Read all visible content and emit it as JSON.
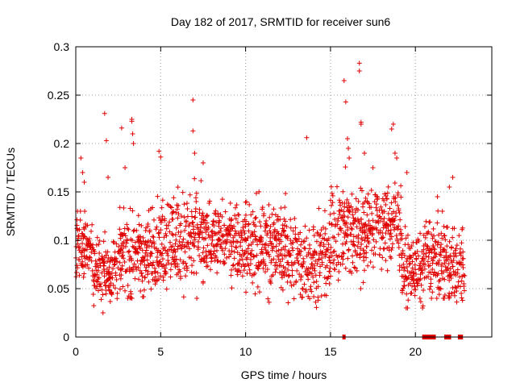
{
  "chart_data": {
    "type": "scatter",
    "title": "Day 182 of 2017, SRMTID for receiver sun6",
    "xlabel": "GPS time / hours",
    "ylabel": "SRMTID / TECUs",
    "xlim": [
      0,
      24.5
    ],
    "ylim": [
      0,
      0.3
    ],
    "x_ticks": [
      0,
      5,
      10,
      15,
      20
    ],
    "y_ticks": [
      0,
      0.05,
      0.1,
      0.15,
      0.2,
      0.25,
      0.3
    ],
    "y_tick_labels": [
      "0",
      "0.05",
      "0.1",
      "0.15",
      "0.2",
      "0.25",
      "0.3"
    ],
    "grid": true,
    "marker": "plus",
    "color": "#e00000",
    "sample_interval_hours": 0.02,
    "series": [
      {
        "name": "sun6",
        "segments": [
          {
            "t_start": 0.0,
            "t_end": 1.0,
            "min": 0.04,
            "max": 0.13,
            "center": 0.095
          },
          {
            "t_start": 1.0,
            "t_end": 2.5,
            "min": 0.025,
            "max": 0.12,
            "center": 0.07
          },
          {
            "t_start": 2.5,
            "t_end": 4.5,
            "min": 0.04,
            "max": 0.15,
            "center": 0.085
          },
          {
            "t_start": 4.5,
            "t_end": 7.5,
            "min": 0.04,
            "max": 0.17,
            "center": 0.1
          },
          {
            "t_start": 7.5,
            "t_end": 10.0,
            "min": 0.05,
            "max": 0.15,
            "center": 0.1
          },
          {
            "t_start": 10.0,
            "t_end": 12.5,
            "min": 0.035,
            "max": 0.16,
            "center": 0.095
          },
          {
            "t_start": 12.5,
            "t_end": 15.0,
            "min": 0.03,
            "max": 0.15,
            "center": 0.08
          },
          {
            "t_start": 15.0,
            "t_end": 17.0,
            "min": 0.05,
            "max": 0.18,
            "center": 0.11
          },
          {
            "t_start": 17.0,
            "t_end": 19.2,
            "min": 0.06,
            "max": 0.17,
            "center": 0.115
          },
          {
            "t_start": 19.2,
            "t_end": 20.5,
            "min": 0.03,
            "max": 0.12,
            "center": 0.07
          },
          {
            "t_start": 20.5,
            "t_end": 22.0,
            "min": 0.04,
            "max": 0.15,
            "center": 0.08
          },
          {
            "t_start": 22.0,
            "t_end": 22.9,
            "min": 0.03,
            "max": 0.14,
            "center": 0.07
          }
        ],
        "outliers": [
          {
            "x": 0.3,
            "y": 0.185
          },
          {
            "x": 0.4,
            "y": 0.17
          },
          {
            "x": 0.5,
            "y": 0.16
          },
          {
            "x": 1.7,
            "y": 0.231
          },
          {
            "x": 1.8,
            "y": 0.203
          },
          {
            "x": 1.9,
            "y": 0.165
          },
          {
            "x": 2.7,
            "y": 0.216
          },
          {
            "x": 3.3,
            "y": 0.225
          },
          {
            "x": 3.3,
            "y": 0.223
          },
          {
            "x": 3.35,
            "y": 0.21
          },
          {
            "x": 3.4,
            "y": 0.2
          },
          {
            "x": 2.9,
            "y": 0.175
          },
          {
            "x": 4.9,
            "y": 0.192
          },
          {
            "x": 5.0,
            "y": 0.186
          },
          {
            "x": 6.9,
            "y": 0.245
          },
          {
            "x": 6.9,
            "y": 0.213
          },
          {
            "x": 7.0,
            "y": 0.19
          },
          {
            "x": 7.5,
            "y": 0.18
          },
          {
            "x": 13.6,
            "y": 0.206
          },
          {
            "x": 15.8,
            "y": 0.265
          },
          {
            "x": 15.9,
            "y": 0.243
          },
          {
            "x": 16.0,
            "y": 0.205
          },
          {
            "x": 16.05,
            "y": 0.195
          },
          {
            "x": 16.1,
            "y": 0.185
          },
          {
            "x": 16.7,
            "y": 0.283
          },
          {
            "x": 16.7,
            "y": 0.275
          },
          {
            "x": 16.8,
            "y": 0.222
          },
          {
            "x": 16.8,
            "y": 0.22
          },
          {
            "x": 17.0,
            "y": 0.19
          },
          {
            "x": 17.5,
            "y": 0.175
          },
          {
            "x": 18.6,
            "y": 0.215
          },
          {
            "x": 18.7,
            "y": 0.22
          },
          {
            "x": 18.8,
            "y": 0.19
          },
          {
            "x": 18.9,
            "y": 0.185
          },
          {
            "x": 19.5,
            "y": 0.17
          },
          {
            "x": 22.2,
            "y": 0.165
          },
          {
            "x": 22.0,
            "y": 0.155
          },
          {
            "x": 21.3,
            "y": 0.145
          }
        ]
      }
    ],
    "zero_markers": [
      {
        "x_start": 15.7,
        "x_end": 15.85,
        "y": 0
      },
      {
        "x_start": 20.4,
        "x_end": 21.2,
        "y": 0
      },
      {
        "x_start": 21.7,
        "x_end": 22.1,
        "y": 0
      },
      {
        "x_start": 22.5,
        "x_end": 22.8,
        "y": 0
      }
    ]
  }
}
